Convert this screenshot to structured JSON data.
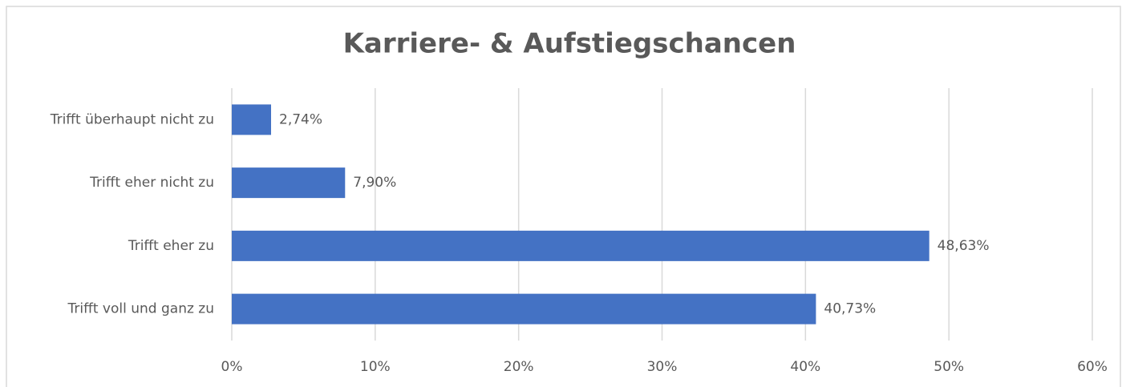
{
  "chart_data": {
    "type": "hbar",
    "title": "Karriere- & Aufstiegschancen",
    "categories": [
      "Trifft überhaupt nicht zu",
      "Trifft eher nicht zu",
      "Trifft eher zu",
      "Trifft voll und ganz zu"
    ],
    "values": [
      2.74,
      7.9,
      48.63,
      40.73
    ],
    "value_labels": [
      "2,74%",
      "7,90%",
      "48,63%",
      "40,73%"
    ],
    "color": "#4472c4",
    "xlim": [
      0,
      60
    ],
    "xticks": [
      {
        "value": 0,
        "label": "0%"
      },
      {
        "value": 10,
        "label": "10%"
      },
      {
        "value": 20,
        "label": "20%"
      },
      {
        "value": 30,
        "label": "30%"
      },
      {
        "value": 40,
        "label": "40%"
      },
      {
        "value": 50,
        "label": "50%"
      },
      {
        "value": 60,
        "label": "60%"
      }
    ],
    "grid": true
  }
}
